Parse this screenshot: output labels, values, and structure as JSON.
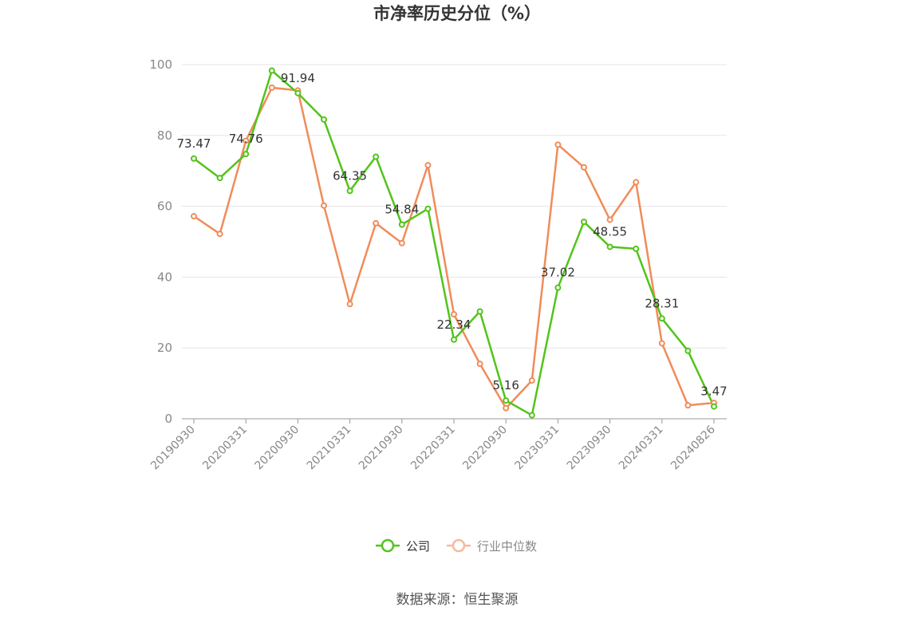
{
  "chart_data": {
    "type": "line",
    "title": "市净率历史分位（%）",
    "ylim": [
      0,
      100
    ],
    "yticks": [
      0,
      20,
      40,
      60,
      80,
      100
    ],
    "grid": true,
    "legend_position": "bottom",
    "x": [
      "20190930",
      "20191231",
      "20200331",
      "20200630",
      "20200930",
      "20201231",
      "20210331",
      "20210630",
      "20210930",
      "20211231",
      "20220331",
      "20220630",
      "20220930",
      "20221231",
      "20230331",
      "20230630",
      "20230930",
      "20231231",
      "20240331",
      "20240630",
      "20240826"
    ],
    "xtick_labels": [
      "20190930",
      "20200331",
      "20200930",
      "20210331",
      "20210930",
      "20220331",
      "20220930",
      "20230331",
      "20230930",
      "20240331",
      "20240826"
    ],
    "series": [
      {
        "name": "公司",
        "color": "#52c41a",
        "values": [
          73.47,
          68.0,
          74.76,
          98.3,
          91.94,
          84.5,
          64.35,
          74.0,
          54.84,
          59.3,
          22.34,
          30.3,
          5.16,
          1.0,
          37.02,
          55.6,
          48.55,
          48.0,
          28.31,
          19.2,
          3.47
        ],
        "labels": {
          "0": "73.47",
          "2": "74.76",
          "4": "91.94",
          "6": "64.35",
          "8": "54.84",
          "10": "22.34",
          "12": "5.16",
          "14": "37.02",
          "16": "48.55",
          "18": "28.31",
          "20": "3.47"
        }
      },
      {
        "name": "行业中位数",
        "color": "#f08c5a",
        "values": [
          57.2,
          52.2,
          78.5,
          93.5,
          92.7,
          60.2,
          32.4,
          55.2,
          49.6,
          71.6,
          29.5,
          15.5,
          3.0,
          10.8,
          77.4,
          71.0,
          56.2,
          66.8,
          21.3,
          3.8,
          4.5
        ]
      }
    ]
  },
  "source_text": "数据来源：恒生聚源"
}
